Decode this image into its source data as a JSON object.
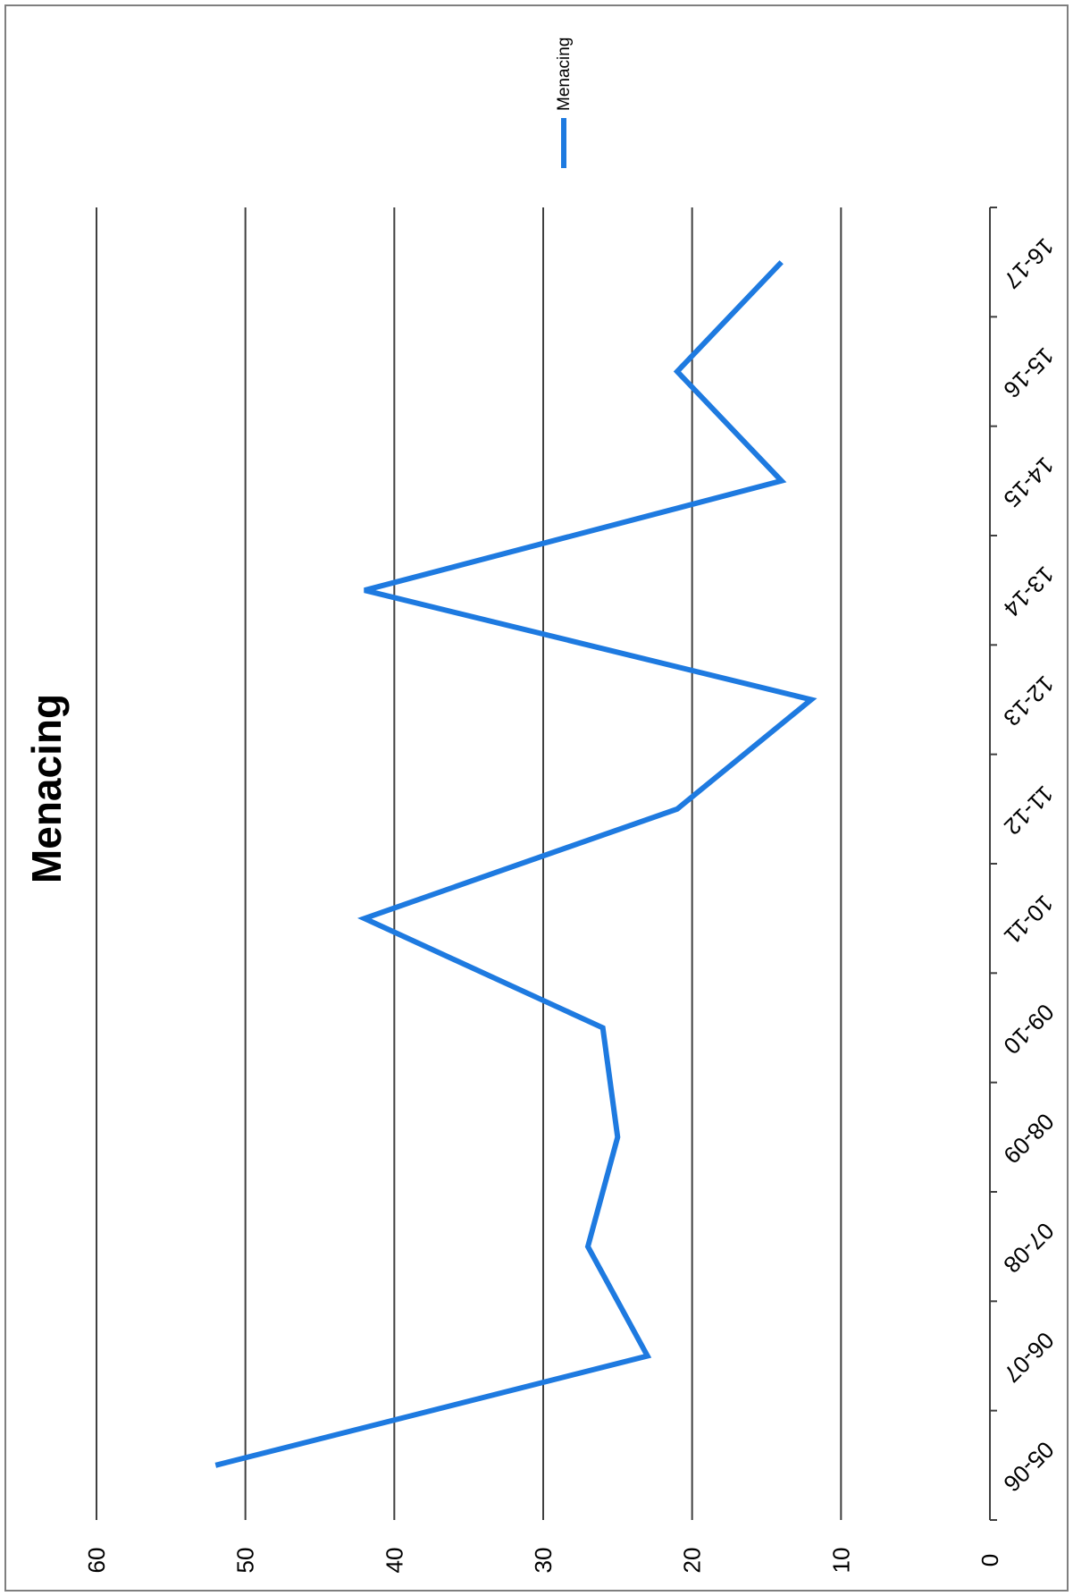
{
  "chart_data": {
    "type": "line",
    "title": "Menacing",
    "categories": [
      "05-06",
      "06-07",
      "07-08",
      "08-09",
      "09-10",
      "10-11",
      "11-12",
      "12-13",
      "13-14",
      "14-15",
      "15-16",
      "16-17"
    ],
    "series": [
      {
        "name": "Menacing",
        "color": "#1e7ae0",
        "values": [
          52,
          23,
          27,
          25,
          26,
          42,
          21,
          12,
          42,
          14,
          21,
          14
        ]
      }
    ],
    "ylim": [
      0,
      60
    ],
    "yticks": [
      0,
      10,
      20,
      30,
      40,
      50,
      60
    ],
    "grid": true,
    "legend_position": "top",
    "orientation": "rotated-90"
  }
}
